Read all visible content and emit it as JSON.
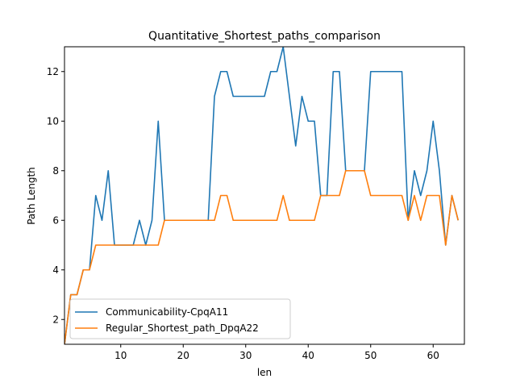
{
  "chart_data": {
    "type": "line",
    "title": "Quantitative_Shortest_paths_comparison",
    "xlabel": "len",
    "ylabel": "Path Length",
    "xlim": [
      1,
      65
    ],
    "ylim": [
      1,
      13
    ],
    "xticks": [
      10,
      20,
      30,
      40,
      50,
      60
    ],
    "yticks": [
      2,
      4,
      6,
      8,
      10,
      12
    ],
    "grid": false,
    "legend_position": "lower-left",
    "series": [
      {
        "name": "Communicability-CpqA11",
        "color": "#1f77b4",
        "x": [
          1,
          2,
          3,
          4,
          5,
          6,
          7,
          8,
          9,
          10,
          11,
          12,
          13,
          14,
          15,
          16,
          17,
          18,
          19,
          20,
          21,
          22,
          23,
          24,
          25,
          26,
          27,
          28,
          29,
          30,
          31,
          32,
          33,
          34,
          35,
          36,
          37,
          38,
          39,
          40,
          41,
          42,
          43,
          44,
          45,
          46,
          47,
          48,
          49,
          50,
          51,
          52,
          53,
          54,
          55,
          56,
          57,
          58,
          59,
          60,
          61,
          62,
          63,
          64
        ],
        "values": [
          1,
          3,
          3,
          4,
          4,
          7,
          6,
          8,
          5,
          5,
          5,
          5,
          6,
          5,
          6,
          10,
          6,
          6,
          6,
          6,
          6,
          6,
          6,
          6,
          11,
          12,
          12,
          11,
          11,
          11,
          11,
          11,
          11,
          12,
          12,
          13,
          11,
          9,
          11,
          10,
          10,
          7,
          7,
          12,
          12,
          8,
          8,
          8,
          8,
          12,
          12,
          12,
          12,
          12,
          12,
          6,
          8,
          7,
          8,
          10,
          8,
          5,
          7,
          6
        ]
      },
      {
        "name": "Regular_Shortest_path_DpqA22",
        "color": "#ff7f0e",
        "x": [
          1,
          2,
          3,
          4,
          5,
          6,
          7,
          8,
          9,
          10,
          11,
          12,
          13,
          14,
          15,
          16,
          17,
          18,
          19,
          20,
          21,
          22,
          23,
          24,
          25,
          26,
          27,
          28,
          29,
          30,
          31,
          32,
          33,
          34,
          35,
          36,
          37,
          38,
          39,
          40,
          41,
          42,
          43,
          44,
          45,
          46,
          47,
          48,
          49,
          50,
          51,
          52,
          53,
          54,
          55,
          56,
          57,
          58,
          59,
          60,
          61,
          62,
          63,
          64
        ],
        "values": [
          1,
          3,
          3,
          4,
          4,
          5,
          5,
          5,
          5,
          5,
          5,
          5,
          5,
          5,
          5,
          5,
          6,
          6,
          6,
          6,
          6,
          6,
          6,
          6,
          6,
          7,
          7,
          6,
          6,
          6,
          6,
          6,
          6,
          6,
          6,
          7,
          6,
          6,
          6,
          6,
          6,
          7,
          7,
          7,
          7,
          8,
          8,
          8,
          8,
          7,
          7,
          7,
          7,
          7,
          7,
          6,
          7,
          6,
          7,
          7,
          7,
          5,
          7,
          6
        ]
      }
    ]
  }
}
